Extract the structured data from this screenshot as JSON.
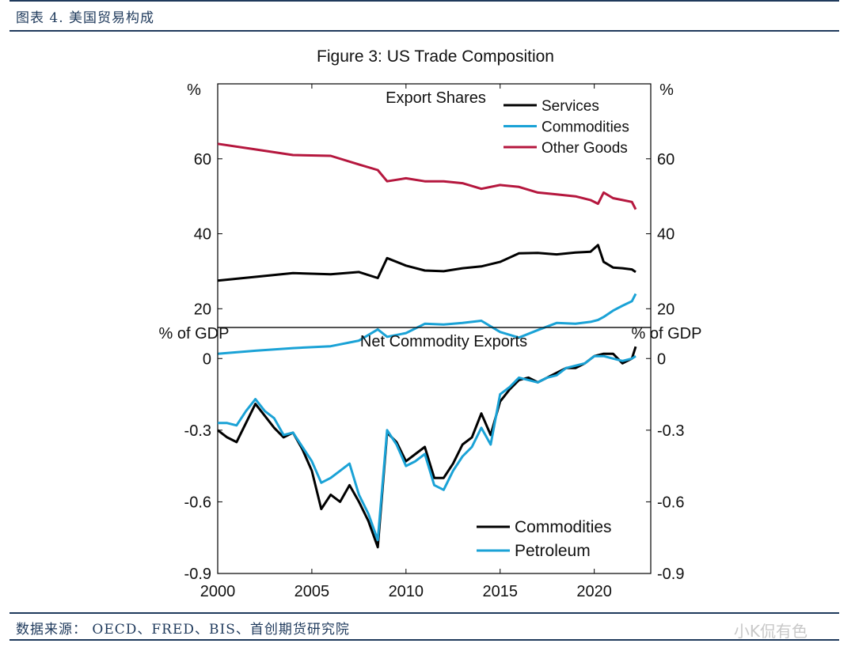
{
  "header": {
    "label": "图表 4. 美国贸易构成"
  },
  "footer": {
    "source": "数据来源： OECD、FRED、BIS、首创期货研究院",
    "watermark": "小K侃有色"
  },
  "chart_data": [
    {
      "type": "line",
      "title": "Figure 3: US Trade Composition",
      "panel_title": "Export Shares",
      "ylabel_left": "%",
      "ylabel_right": "%",
      "ylim": [
        15,
        80
      ],
      "yticks": [
        "20",
        "40",
        "60"
      ],
      "x": [
        2000.0,
        2002.0,
        2004.0,
        2006.0,
        2007.5,
        2008.5,
        2009.0,
        2010.0,
        2011.0,
        2012.0,
        2013.0,
        2014.0,
        2015.0,
        2016.0,
        2017.0,
        2018.0,
        2019.0,
        2019.8,
        2020.2,
        2020.5,
        2021.0,
        2021.5,
        2022.0,
        2022.2
      ],
      "series": [
        {
          "name": "Services",
          "color": "#000000",
          "values": [
            27.5,
            28.5,
            29.5,
            29.2,
            29.8,
            28.2,
            33.5,
            31.5,
            30.2,
            30.0,
            30.8,
            31.3,
            32.5,
            34.8,
            34.9,
            34.5,
            35.0,
            35.2,
            37.0,
            32.5,
            31.0,
            30.8,
            30.5,
            29.8
          ]
        },
        {
          "name": "Commodities",
          "color": "#1aa2d6",
          "values": [
            8.0,
            8.8,
            9.5,
            10.0,
            11.5,
            14.5,
            12.5,
            13.5,
            16.0,
            15.8,
            16.2,
            16.8,
            13.8,
            12.3,
            14.3,
            16.2,
            16.0,
            16.5,
            17.0,
            17.8,
            19.5,
            20.8,
            22.0,
            24.0
          ]
        },
        {
          "name": "Other Goods",
          "color": "#b5173e",
          "values": [
            64.0,
            62.5,
            61.0,
            60.8,
            58.5,
            57.0,
            54.0,
            54.8,
            54.0,
            54.0,
            53.5,
            52.0,
            53.0,
            52.5,
            51.0,
            50.5,
            50.0,
            49.0,
            48.0,
            51.0,
            49.5,
            49.0,
            48.5,
            46.5
          ]
        }
      ]
    },
    {
      "type": "line",
      "panel_title": "Net Commodity Exports",
      "ylabel_left": "% of GDP",
      "ylabel_right": "% of GDP",
      "ylim": [
        -0.9,
        0.13
      ],
      "yticks": [
        "0",
        "-0.3",
        "-0.6",
        "-0.9"
      ],
      "xlim": [
        2000,
        2023
      ],
      "xticks": [
        "2000",
        "2005",
        "2010",
        "2015",
        "2020"
      ],
      "x": [
        2000.0,
        2000.5,
        2001.0,
        2001.5,
        2002.0,
        2002.5,
        2003.0,
        2003.5,
        2004.0,
        2004.5,
        2005.0,
        2005.5,
        2006.0,
        2006.5,
        2007.0,
        2007.5,
        2008.0,
        2008.5,
        2009.0,
        2009.5,
        2010.0,
        2010.5,
        2011.0,
        2011.5,
        2012.0,
        2012.5,
        2013.0,
        2013.5,
        2014.0,
        2014.5,
        2015.0,
        2015.5,
        2016.0,
        2016.5,
        2017.0,
        2017.5,
        2018.0,
        2018.5,
        2019.0,
        2019.5,
        2020.0,
        2020.5,
        2021.0,
        2021.5,
        2022.0,
        2022.2
      ],
      "series": [
        {
          "name": "Commodities",
          "color": "#000000",
          "values": [
            -0.3,
            -0.33,
            -0.35,
            -0.27,
            -0.19,
            -0.24,
            -0.29,
            -0.33,
            -0.31,
            -0.38,
            -0.47,
            -0.63,
            -0.57,
            -0.6,
            -0.53,
            -0.6,
            -0.68,
            -0.79,
            -0.31,
            -0.35,
            -0.43,
            -0.4,
            -0.37,
            -0.5,
            -0.5,
            -0.44,
            -0.36,
            -0.33,
            -0.23,
            -0.32,
            -0.18,
            -0.13,
            -0.09,
            -0.08,
            -0.1,
            -0.08,
            -0.06,
            -0.04,
            -0.04,
            -0.02,
            0.01,
            0.02,
            0.02,
            -0.02,
            0.0,
            0.05
          ]
        },
        {
          "name": "Petroleum",
          "color": "#1aa2d6",
          "values": [
            -0.27,
            -0.27,
            -0.28,
            -0.22,
            -0.17,
            -0.22,
            -0.25,
            -0.32,
            -0.31,
            -0.37,
            -0.43,
            -0.52,
            -0.5,
            -0.47,
            -0.44,
            -0.57,
            -0.65,
            -0.76,
            -0.3,
            -0.36,
            -0.45,
            -0.43,
            -0.4,
            -0.53,
            -0.55,
            -0.47,
            -0.41,
            -0.37,
            -0.29,
            -0.36,
            -0.15,
            -0.12,
            -0.08,
            -0.09,
            -0.1,
            -0.08,
            -0.07,
            -0.04,
            -0.03,
            -0.02,
            0.01,
            0.01,
            0.0,
            -0.01,
            0.0,
            0.01
          ]
        }
      ]
    }
  ]
}
